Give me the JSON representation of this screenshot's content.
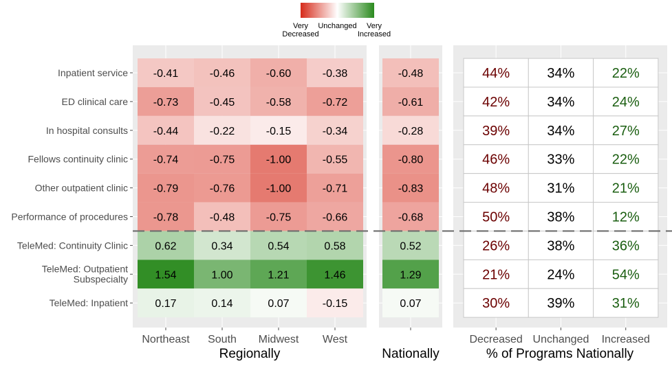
{
  "chart_data": {
    "type": "heatmap",
    "legend": {
      "labels": [
        "Very\nDecreased",
        "Unchanged",
        "Very\nIncreased"
      ],
      "colors": [
        "#d62a1a",
        "#ffffff",
        "#2a8a1e"
      ],
      "placement": "top-center"
    },
    "rows": [
      "Inpatient service",
      "ED clinical care",
      "In hospital consults",
      "Fellows continuity clinic",
      "Other outpatient clinic",
      "Performance of procedures",
      "TeleMed: Continuity Clinic",
      "TeleMed: Outpatient\nSubspecialty",
      "TeleMed: Inpatient"
    ],
    "regional": {
      "title": "Regionally",
      "columns": [
        "Northeast",
        "South",
        "Midwest",
        "West"
      ],
      "values": [
        [
          -0.41,
          -0.46,
          -0.6,
          -0.38
        ],
        [
          -0.73,
          -0.45,
          -0.58,
          -0.72
        ],
        [
          -0.44,
          -0.22,
          -0.15,
          -0.34
        ],
        [
          -0.74,
          -0.75,
          -1.0,
          -0.55
        ],
        [
          -0.79,
          -0.76,
          -1.0,
          -0.71
        ],
        [
          -0.78,
          -0.48,
          -0.75,
          -0.66
        ],
        [
          0.62,
          0.34,
          0.54,
          0.58
        ],
        [
          1.54,
          1.0,
          1.21,
          1.46
        ],
        [
          0.17,
          0.14,
          0.07,
          -0.15
        ]
      ]
    },
    "national": {
      "title": "Nationally",
      "values": [
        -0.48,
        -0.61,
        -0.28,
        -0.8,
        -0.83,
        -0.68,
        0.52,
        1.29,
        0.07
      ]
    },
    "programs": {
      "title": "% of Programs Nationally",
      "columns": [
        "Decreased",
        "Unchanged",
        "Increased"
      ],
      "column_colors": [
        "#6b0000",
        "#000000",
        "#1a5e10"
      ],
      "values": [
        [
          "44%",
          "34%",
          "22%"
        ],
        [
          "42%",
          "34%",
          "24%"
        ],
        [
          "39%",
          "34%",
          "27%"
        ],
        [
          "46%",
          "33%",
          "22%"
        ],
        [
          "48%",
          "31%",
          "21%"
        ],
        [
          "50%",
          "38%",
          "12%"
        ],
        [
          "26%",
          "38%",
          "36%"
        ],
        [
          "21%",
          "24%",
          "54%"
        ],
        [
          "30%",
          "39%",
          "31%"
        ]
      ]
    },
    "scale_limits": [
      -1.6,
      1.6
    ],
    "divider_after_row": 6,
    "grid": true
  }
}
